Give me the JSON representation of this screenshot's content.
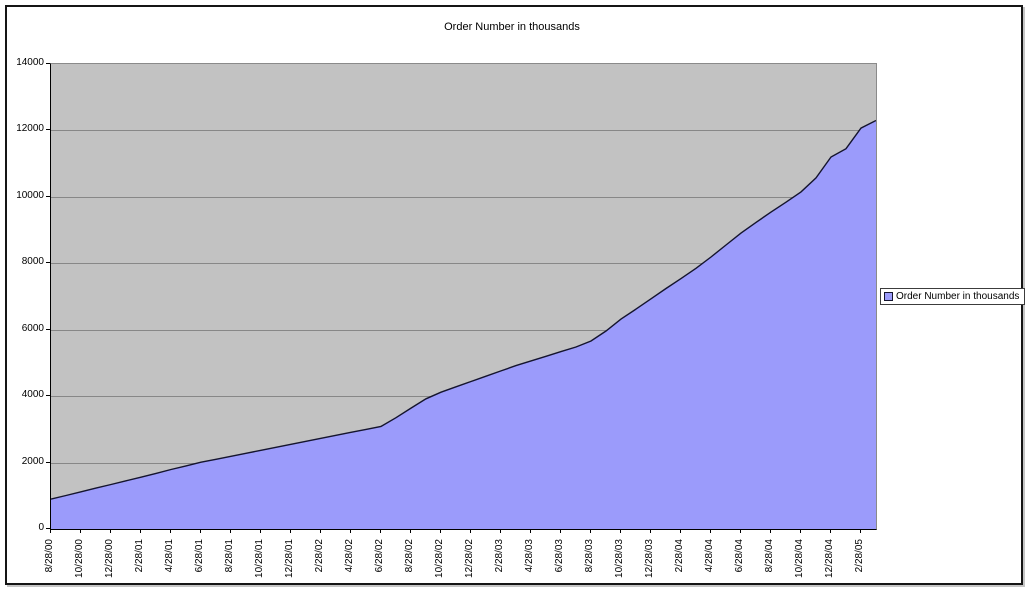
{
  "chart_data": {
    "type": "area",
    "title": "Order Number in thousands",
    "legend": {
      "position": "right",
      "entries": [
        "Order Number in thousands"
      ]
    },
    "categories": [
      "8/28/00",
      "10/28/00",
      "12/28/00",
      "2/28/01",
      "4/28/01",
      "6/28/01",
      "8/28/01",
      "10/28/01",
      "12/28/01",
      "2/28/02",
      "4/28/02",
      "6/28/02",
      "8/28/02",
      "10/28/02",
      "12/28/02",
      "2/28/03",
      "4/28/03",
      "6/28/03",
      "8/28/03",
      "10/28/03",
      "12/28/03",
      "2/28/04",
      "4/28/04",
      "6/28/04",
      "8/28/04",
      "10/28/04",
      "12/28/04",
      "2/28/05"
    ],
    "values_at_labels": [
      900,
      1120,
      1340,
      1560,
      1790,
      2010,
      2190,
      2370,
      2550,
      2730,
      2910,
      3090,
      3640,
      4120,
      4440,
      4760,
      5060,
      5340,
      5660,
      6320,
      6930,
      7540,
      8190,
      8910,
      9540,
      10150,
      11200,
      12070
    ],
    "series": [
      {
        "name": "Order Number in thousands",
        "values": [
          900,
          1010,
          1120,
          1230,
          1340,
          1450,
          1560,
          1675,
          1790,
          1900,
          2010,
          2100,
          2190,
          2280,
          2370,
          2460,
          2550,
          2640,
          2730,
          2820,
          2910,
          3000,
          3090,
          3350,
          3640,
          3920,
          4120,
          4280,
          4440,
          4600,
          4760,
          4920,
          5060,
          5200,
          5340,
          5480,
          5660,
          5960,
          6320,
          6620,
          6930,
          7240,
          7540,
          7850,
          8190,
          8550,
          8910,
          9230,
          9540,
          9840,
          10150,
          10570,
          11200,
          11450,
          12070,
          12300
        ]
      }
    ],
    "points_per_label": 2,
    "xlabel": "",
    "ylabel": "",
    "ylim": [
      0,
      14000
    ],
    "ytick_interval": 2000,
    "y_tick_labels": [
      "0",
      "2000",
      "4000",
      "6000",
      "8000",
      "10000",
      "12000",
      "14000"
    ],
    "grid": true
  },
  "colors": {
    "plot_background": "#c2c2c2",
    "gridline": "#878787",
    "area_fill": "#9b9bfb",
    "area_line": "#14142e",
    "axis": "#000000",
    "frame_border": "#151515",
    "legend_border": "#3c3c3c",
    "text": "#000000"
  }
}
